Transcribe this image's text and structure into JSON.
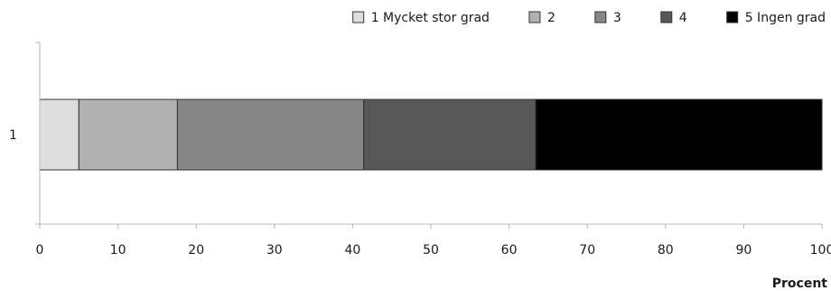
{
  "chart_data": {
    "type": "bar",
    "orientation": "horizontal",
    "stacked": true,
    "categories": [
      "1"
    ],
    "series": [
      {
        "name": "1 Mycket stor grad",
        "values": [
          5.0
        ],
        "color": "#dedede"
      },
      {
        "name": "2",
        "values": [
          12.6
        ],
        "color": "#b1b1b1"
      },
      {
        "name": "3",
        "values": [
          23.8
        ],
        "color": "#878787"
      },
      {
        "name": "4",
        "values": [
          22.0
        ],
        "color": "#575757"
      },
      {
        "name": "5 Ingen grad",
        "values": [
          36.6
        ],
        "color": "#000000"
      }
    ],
    "x_axis": {
      "label": "Procent",
      "range": [
        0,
        100
      ],
      "ticks": [
        "0",
        "10",
        "20",
        "30",
        "40",
        "50",
        "60",
        "70",
        "80",
        "90",
        "100"
      ]
    },
    "legend_position": "top-right",
    "grid": false
  }
}
